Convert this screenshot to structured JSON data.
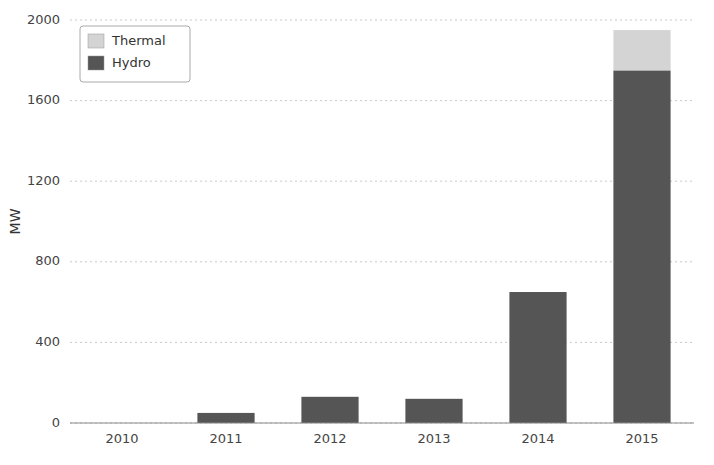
{
  "chart_data": {
    "type": "bar",
    "stacked": true,
    "categories": [
      "2010",
      "2011",
      "2012",
      "2013",
      "2014",
      "2015"
    ],
    "series": [
      {
        "name": "Hydro",
        "color": "#555555",
        "values": [
          0,
          50,
          130,
          120,
          650,
          1750
        ]
      },
      {
        "name": "Thermal",
        "color": "#d4d4d4",
        "values": [
          0,
          0,
          0,
          0,
          0,
          200
        ]
      }
    ],
    "ylabel": "MW",
    "ylim": [
      0,
      2000
    ],
    "yticks": [
      0,
      400,
      800,
      1200,
      1600,
      2000
    ],
    "grid": true,
    "legend": "upper left"
  }
}
